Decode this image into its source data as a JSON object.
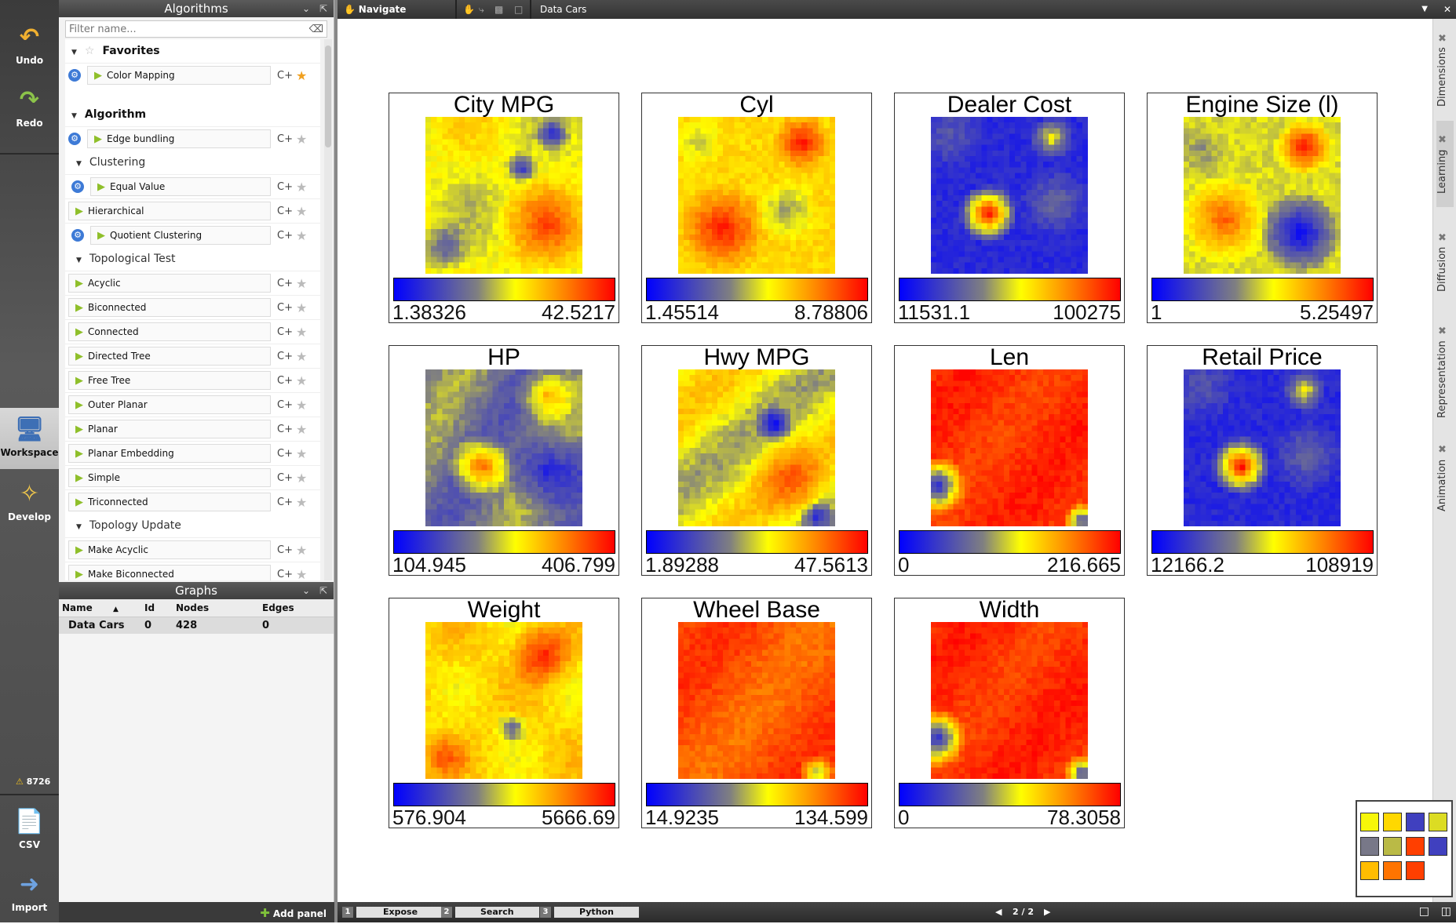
{
  "toolbar": {
    "undo": "Undo",
    "redo": "Redo",
    "workspace": "Workspace",
    "develop": "Develop",
    "warnings": "8726",
    "csv": "CSV",
    "import": "Import"
  },
  "algorithms": {
    "title": "Algorithms",
    "filter_placeholder": "Filter name...",
    "favorites_label": "Favorites",
    "favorites": [
      {
        "label": "Color Mapping"
      }
    ],
    "algorithm_label": "Algorithm",
    "edge_bundling": "Edge bundling",
    "clustering_label": "Clustering",
    "clustering": [
      {
        "label": "Equal Value"
      },
      {
        "label": "Hierarchical"
      },
      {
        "label": "Quotient Clustering"
      }
    ],
    "topological_label": "Topological Test",
    "topological": [
      {
        "label": "Acyclic"
      },
      {
        "label": "Biconnected"
      },
      {
        "label": "Connected"
      },
      {
        "label": "Directed Tree"
      },
      {
        "label": "Free Tree"
      },
      {
        "label": "Outer Planar"
      },
      {
        "label": "Planar"
      },
      {
        "label": "Planar Embedding"
      },
      {
        "label": "Simple"
      },
      {
        "label": "Triconnected"
      }
    ],
    "topology_update_label": "Topology Update",
    "topology_update": [
      {
        "label": "Make Acyclic"
      },
      {
        "label": "Make Biconnected"
      }
    ]
  },
  "graphs": {
    "title": "Graphs",
    "columns": {
      "name": "Name",
      "id": "Id",
      "nodes": "Nodes",
      "edges": "Edges"
    },
    "rows": [
      {
        "name": "Data Cars",
        "id": "0",
        "nodes": "428",
        "edges": "0"
      }
    ]
  },
  "add_panel": "Add panel",
  "topbar": {
    "mode": "Navigate",
    "view_title": "Data Cars"
  },
  "plots": [
    {
      "title": "City MPG",
      "min": "1.38326",
      "max": "42.5217",
      "pattern": "mpg"
    },
    {
      "title": "Cyl",
      "min": "1.45514",
      "max": "8.78806",
      "pattern": "cyl"
    },
    {
      "title": "Dealer Cost",
      "min": "11531.1",
      "max": "100275",
      "pattern": "cost"
    },
    {
      "title": "Engine Size (l)",
      "min": "1",
      "max": "5.25497",
      "pattern": "engine"
    },
    {
      "title": "HP",
      "min": "104.945",
      "max": "406.799",
      "pattern": "hp"
    },
    {
      "title": "Hwy MPG",
      "min": "1.89288",
      "max": "47.5613",
      "pattern": "hwy"
    },
    {
      "title": "Len",
      "min": "0",
      "max": "216.665",
      "pattern": "len"
    },
    {
      "title": "Retail Price",
      "min": "12166.2",
      "max": "108919",
      "pattern": "cost"
    },
    {
      "title": "Weight",
      "min": "576.904",
      "max": "5666.69",
      "pattern": "weight"
    },
    {
      "title": "Wheel Base",
      "min": "14.9235",
      "max": "134.599",
      "pattern": "wheel"
    },
    {
      "title": "Width",
      "min": "0",
      "max": "78.3058",
      "pattern": "len"
    }
  ],
  "side_tabs": [
    "Dimensions",
    "Learning",
    "Diffusion",
    "Representation",
    "Animation"
  ],
  "status": {
    "expose": "Expose",
    "search": "Search",
    "python": "Python",
    "n1": "1",
    "n2": "2",
    "n3": "3",
    "page": "2 / 2"
  }
}
